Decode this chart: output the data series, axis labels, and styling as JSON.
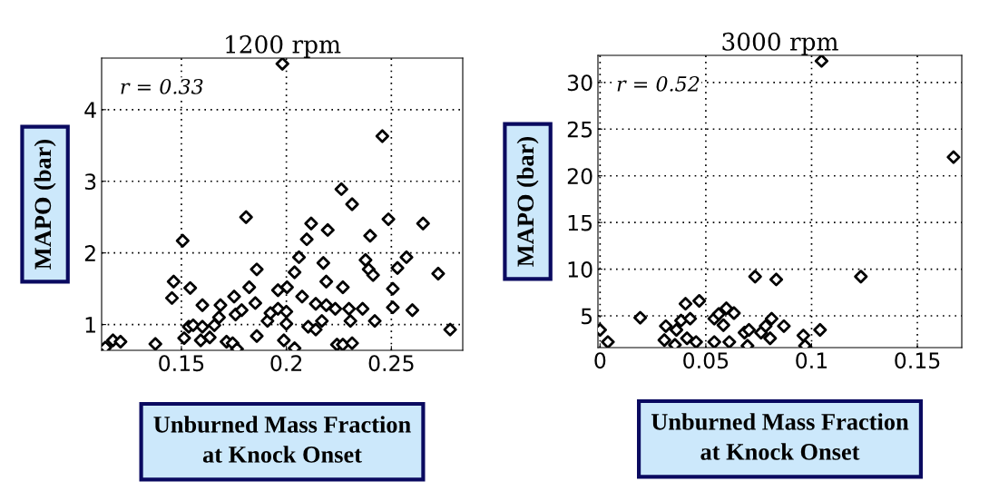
{
  "chart_data": [
    {
      "type": "scatter",
      "title": "1200 rpm",
      "xlabel": "Unburned Mass Fraction\nat Knock Onset",
      "ylabel": "MAPO (bar)",
      "annotations": [
        "r = 0.33"
      ],
      "x": [
        0.1138,
        0.1174,
        0.121,
        0.1376,
        0.1463,
        0.1455,
        0.1506,
        0.1542,
        0.1513,
        0.1535,
        0.1556,
        0.1592,
        0.16,
        0.16,
        0.1635,
        0.1657,
        0.1679,
        0.1686,
        0.1715,
        0.1744,
        0.1765,
        0.1751,
        0.1758,
        0.1787,
        0.1808,
        0.1823,
        0.1852,
        0.1859,
        0.1859,
        0.191,
        0.1924,
        0.196,
        0.196,
        0.1981,
        0.1988,
        0.2,
        0.2,
        0.2003,
        0.2039,
        0.2039,
        0.206,
        0.2075,
        0.2097,
        0.2118,
        0.2104,
        0.214,
        0.214,
        0.2169,
        0.219,
        0.2197,
        0.2176,
        0.219,
        0.2233,
        0.2262,
        0.2269,
        0.2241,
        0.2269,
        0.2298,
        0.2305,
        0.2313,
        0.2313,
        0.2363,
        0.2399,
        0.2377,
        0.2392,
        0.2413,
        0.2421,
        0.2457,
        0.2486,
        0.2507,
        0.2507,
        0.2529,
        0.2572,
        0.26,
        0.2651,
        0.2723,
        0.278
      ],
      "values": [
        0.68,
        0.78,
        0.76,
        0.73,
        1.6,
        1.37,
        2.17,
        1.51,
        0.81,
        0.97,
        0.99,
        0.78,
        0.97,
        1.27,
        0.82,
        0.99,
        1.1,
        1.27,
        0.76,
        0.74,
        0.66,
        1.39,
        1.14,
        1.2,
        2.5,
        1.52,
        1.3,
        1.77,
        0.84,
        1.05,
        1.16,
        1.48,
        1.22,
        4.64,
        0.78,
        1.01,
        1.18,
        1.52,
        0.67,
        1.73,
        1.94,
        1.39,
        2.19,
        2.41,
        0.97,
        1.29,
        0.93,
        1.05,
        1.27,
        2.32,
        1.86,
        1.6,
        1.22,
        2.89,
        1.52,
        0.72,
        0.72,
        1.22,
        1.05,
        2.68,
        0.74,
        1.22,
        2.24,
        1.9,
        1.77,
        1.69,
        1.05,
        3.63,
        2.47,
        1.5,
        1.24,
        1.79,
        1.94,
        1.2,
        2.41,
        1.71,
        0.93
      ],
      "color": "#000000",
      "marker": "diamond",
      "grid": true,
      "xlim": [
        0.112,
        0.284
      ],
      "ylim": [
        0.64,
        4.72
      ],
      "xticks": [
        0.15,
        0.2,
        0.25
      ],
      "yticks": [
        1,
        2,
        3,
        4
      ]
    },
    {
      "type": "scatter",
      "title": "3000 rpm",
      "xlabel": "Unburned Mass Fraction\nat Knock Onset",
      "ylabel": "MAPO (bar)",
      "annotations": [
        "r = 0.52"
      ],
      "x": [
        0,
        0.0037,
        0.019,
        0.0311,
        0.0304,
        0.0354,
        0.0361,
        0.0383,
        0.0404,
        0.0426,
        0.0411,
        0.0469,
        0.0454,
        0.054,
        0.054,
        0.0561,
        0.0583,
        0.0597,
        0.0633,
        0.0611,
        0.0683,
        0.0697,
        0.0704,
        0.0733,
        0.0761,
        0.0783,
        0.0811,
        0.0804,
        0.0833,
        0.0869,
        0.0961,
        0.0969,
        0.104,
        0.1047,
        0.1233,
        0.1671
      ],
      "values": [
        3.5,
        2.2,
        4.8,
        3.9,
        2.4,
        1.9,
        3.5,
        4.5,
        6.3,
        4.7,
        2.6,
        6.6,
        2.2,
        2.2,
        4.7,
        5.2,
        4.0,
        5.8,
        5.3,
        2.2,
        3.2,
        1.8,
        3.5,
        9.2,
        3.2,
        3.9,
        4.7,
        2.6,
        8.9,
        3.9,
        2.9,
        1.8,
        3.5,
        32.3,
        9.2,
        22.0
      ],
      "color": "#000000",
      "marker": "diamond",
      "grid": true,
      "xlim": [
        -0.001,
        0.171
      ],
      "ylim": [
        1.6,
        32.9
      ],
      "xticks": [
        0,
        0.05,
        0.1,
        0.15
      ],
      "yticks": [
        5,
        10,
        15,
        20,
        25,
        30
      ]
    }
  ]
}
